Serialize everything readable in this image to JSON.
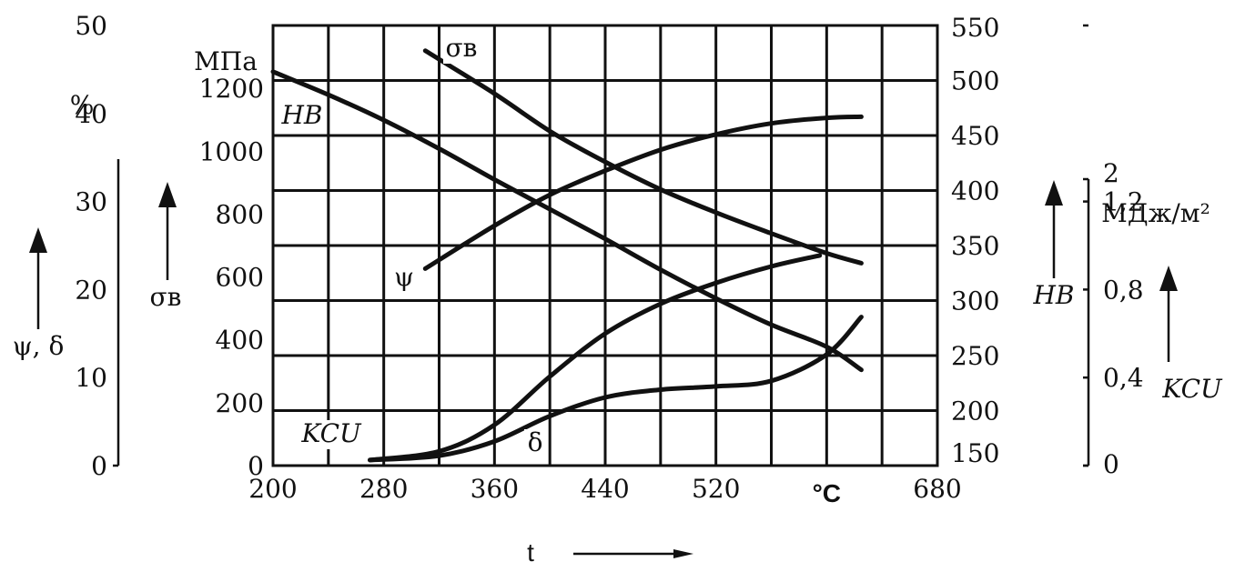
{
  "chart_data": {
    "type": "line",
    "x_axis": {
      "range": [
        200,
        680
      ],
      "ticks": [
        200,
        280,
        360,
        440,
        520,
        680
      ],
      "tick_labels": [
        "200",
        "280",
        "360",
        "440",
        "520",
        "680"
      ],
      "unit_label": "°C",
      "unit_position": 600,
      "title": "t"
    },
    "axes": {
      "percent": {
        "unit": "%",
        "label": "ψ, δ",
        "range": [
          0,
          50
        ],
        "ticks": [
          0,
          10,
          20,
          30,
          40,
          50
        ],
        "tick_labels": [
          "0",
          "10",
          "20",
          "30",
          "40",
          "50"
        ]
      },
      "stress": {
        "unit": "МПа",
        "label": "σв",
        "range": [
          0,
          1400
        ],
        "ticks": [
          0,
          200,
          400,
          600,
          800,
          1000,
          1200
        ],
        "tick_labels": [
          "0",
          "200",
          "400",
          "600",
          "800",
          "1000",
          "1200"
        ]
      },
      "hardness": {
        "label": "HB",
        "range": [
          150,
          550
        ],
        "ticks": [
          150,
          200,
          250,
          300,
          350,
          400,
          450,
          500,
          550
        ],
        "tick_labels": [
          "150",
          "200",
          "250",
          "300",
          "350",
          "400",
          "450",
          "500",
          "550"
        ]
      },
      "impact": {
        "unit": "МДж/м²",
        "label": "KCU",
        "range": [
          0,
          2
        ],
        "ticks": [
          0,
          0.4,
          0.8,
          1.2,
          2
        ],
        "tick_labels": [
          "0",
          "0,4",
          "0,8",
          "1,2",
          "2"
        ]
      }
    },
    "series": [
      {
        "name": "σв",
        "axis": "hardness",
        "x": [
          310,
          360,
          400,
          440,
          480,
          520,
          560,
          600,
          625
        ],
        "y": [
          527,
          488,
          454,
          426,
          401,
          380,
          361,
          343,
          334
        ]
      },
      {
        "name": "HB",
        "axis": "hardness",
        "x": [
          200,
          240,
          280,
          320,
          360,
          400,
          440,
          480,
          520,
          560,
          600,
          625
        ],
        "y": [
          508,
          487,
          464,
          438,
          410,
          383,
          356,
          328,
          302,
          278,
          258,
          237
        ]
      },
      {
        "name": "ψ",
        "axis": "hardness",
        "x": [
          310,
          360,
          400,
          440,
          480,
          520,
          560,
          600,
          625
        ],
        "y": [
          329,
          368,
          396,
          418,
          437,
          451,
          461,
          466,
          467
        ]
      },
      {
        "name": "KCU",
        "axis": "hardness",
        "x": [
          270,
          320,
          360,
          400,
          440,
          480,
          520,
          560,
          595
        ],
        "y": [
          155,
          163,
          187,
          231,
          270,
          297,
          316,
          331,
          341
        ]
      },
      {
        "name": "δ",
        "axis": "hardness",
        "x": [
          270,
          320,
          360,
          400,
          440,
          480,
          520,
          560,
          600,
          625
        ],
        "y": [
          155,
          159,
          172,
          195,
          212,
          219,
          222,
          227,
          251,
          285
        ]
      }
    ]
  }
}
